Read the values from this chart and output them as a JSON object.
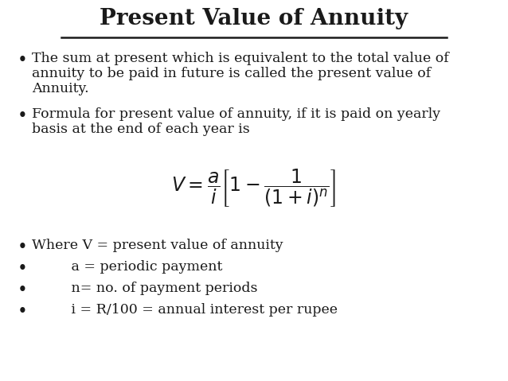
{
  "title": "Present Value of Annuity",
  "background_color": "#ffffff",
  "text_color": "#1a1a1a",
  "bullet1_line1": "The sum at present which is equivalent to the total value of",
  "bullet1_line2": "annuity to be paid in future is called the present value of",
  "bullet1_line3": "Annuity.",
  "bullet2_line1": "Formula for present value of annuity, if it is paid on yearly",
  "bullet2_line2": "basis at the end of each year is",
  "formula": "$V = \\dfrac{a}{i}\\left[1 - \\dfrac{1}{(1+i)^{n}}\\right]$",
  "where1": "Where V = present value of annuity",
  "where2": "         a = periodic payment",
  "where3": "         n= no. of payment periods",
  "where4": "         i = R/100 = annual interest per rupee",
  "title_fontsize": 20,
  "body_fontsize": 12.5,
  "formula_fontsize": 17
}
